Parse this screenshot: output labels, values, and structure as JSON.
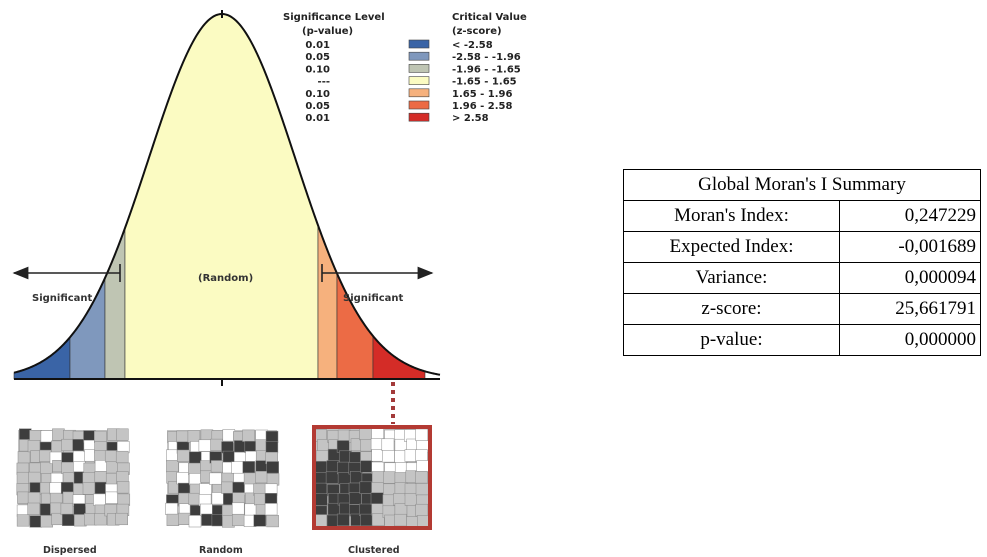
{
  "figure": {
    "significance_header": [
      "Significance Level",
      "(p-value)"
    ],
    "critical_header": [
      "Critical Value",
      "(z-score)"
    ],
    "legend": [
      {
        "p": "0.01",
        "z": "< -2.58",
        "color": "#3a64a6"
      },
      {
        "p": "0.05",
        "z": "-2.58 - -1.96",
        "color": "#7f98bd"
      },
      {
        "p": "0.10",
        "z": "-1.96 - -1.65",
        "color": "#bfc5b3"
      },
      {
        "p": "---",
        "z": "-1.65 - 1.65",
        "color": "#fbfbc2"
      },
      {
        "p": "0.10",
        "z": "1.65 - 1.96",
        "color": "#f6b17d"
      },
      {
        "p": "0.05",
        "z": "1.96 - 2.58",
        "color": "#ec6b45"
      },
      {
        "p": "0.01",
        "z": "> 2.58",
        "color": "#d42c27"
      }
    ],
    "random_label": "(Random)",
    "significant_left": "Significant",
    "significant_right": "Significant",
    "patterns": [
      "Dispersed",
      "Random",
      "Clustered"
    ]
  },
  "summary": {
    "title": "Global Moran's I Summary",
    "rows": [
      {
        "label": "Moran's Index:",
        "value": "0,247229"
      },
      {
        "label": "Expected Index:",
        "value": "-0,001689"
      },
      {
        "label": "Variance:",
        "value": "0,000094"
      },
      {
        "label": "z-score:",
        "value": "25,661791"
      },
      {
        "label": "p-value:",
        "value": "0,000000"
      }
    ]
  }
}
